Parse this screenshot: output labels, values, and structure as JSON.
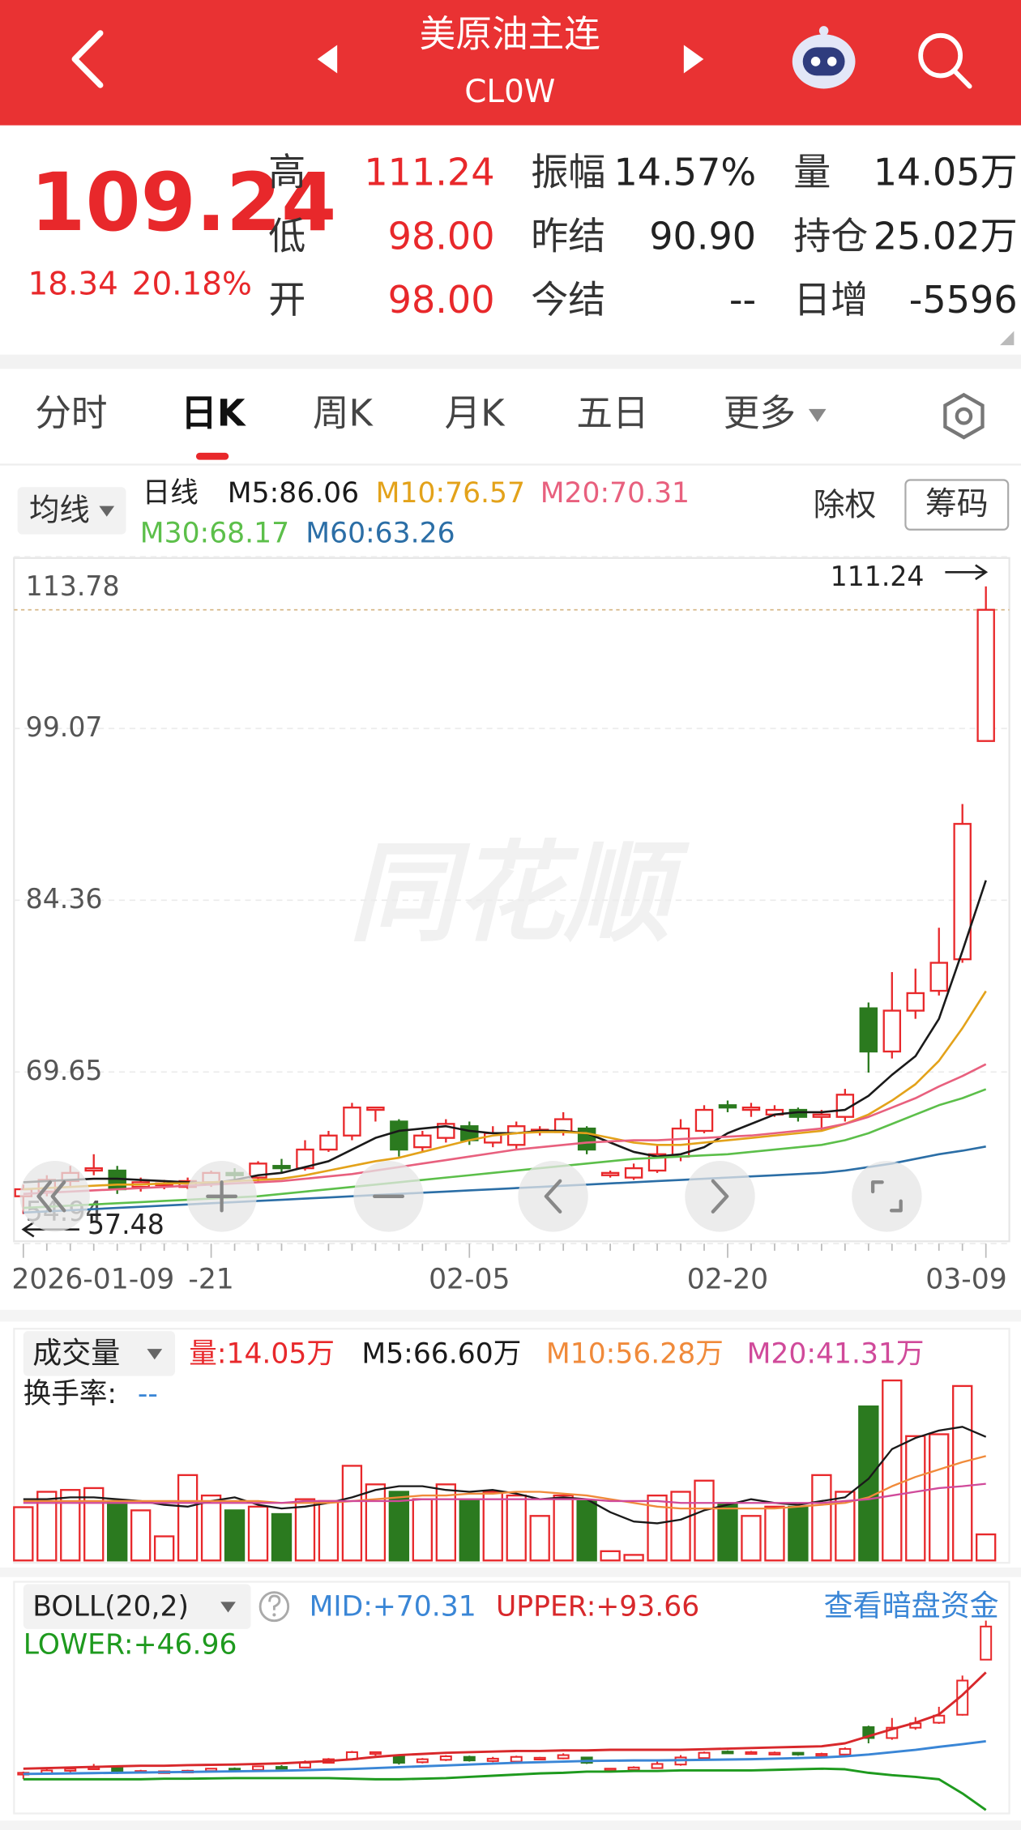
{
  "header": {
    "title": "美原油主连",
    "subtitle": "CL0W"
  },
  "quote": {
    "price": "109.24",
    "change": "18.34",
    "change_pct": "20.18%",
    "stats": [
      [
        {
          "label": "高",
          "value": "111.24"
        },
        {
          "label": "振幅",
          "value": "14.57%"
        },
        {
          "label": "量",
          "value": "14.05万"
        }
      ],
      [
        {
          "label": "低",
          "value": "98.00"
        },
        {
          "label": "昨结",
          "value": "90.90"
        },
        {
          "label": "持仓",
          "value": "25.02万"
        }
      ],
      [
        {
          "label": "开",
          "value": "98.00"
        },
        {
          "label": "今结",
          "value": "--"
        },
        {
          "label": "日增",
          "value": "-5596"
        }
      ]
    ]
  },
  "tabs": [
    "分时",
    "日K",
    "周K",
    "月K",
    "五日",
    "更多"
  ],
  "active_tab": 1,
  "toolbar": {
    "ma_button": "均线",
    "period": "日线",
    "fq": "除权",
    "chips": "筹码"
  },
  "watermark": "同花顺",
  "chart_data": [
    {
      "type": "candlestick",
      "categories": [
        "2026-01-09",
        null,
        null,
        null,
        null,
        null,
        null,
        null,
        "-21",
        null,
        null,
        null,
        null,
        null,
        null,
        null,
        null,
        null,
        null,
        "02-05",
        null,
        null,
        null,
        null,
        null,
        null,
        null,
        null,
        null,
        null,
        "02-20",
        null,
        null,
        null,
        null,
        null,
        null,
        null,
        null,
        null,
        null,
        "03-09"
      ],
      "open": [
        59.0,
        59.4,
        60.3,
        61.2,
        61.2,
        59.8,
        60.0,
        59.8,
        60.2,
        61.0,
        60.6,
        61.6,
        61.4,
        63.0,
        64.2,
        66.4,
        65.4,
        63.2,
        64.0,
        65.0,
        63.6,
        63.4,
        64.6,
        64.5,
        64.8,
        60.8,
        60.6,
        61.2,
        62.4,
        64.6,
        66.8,
        66.4,
        66.0,
        66.4,
        65.8,
        65.8,
        75.1,
        71.4,
        74.9,
        76.6,
        79.3,
        98
      ],
      "high": [
        60.0,
        60.8,
        61.6,
        62.6,
        61.6,
        60.6,
        60.4,
        60.6,
        61.2,
        61.4,
        62.0,
        62.2,
        63.8,
        64.6,
        67.0,
        66.6,
        65.6,
        64.6,
        65.6,
        65.4,
        65.0,
        65.4,
        65.0,
        66.2,
        65.0,
        61.2,
        61.8,
        63.4,
        65.6,
        66.8,
        67.2,
        67.0,
        66.8,
        66.6,
        66.4,
        68.2,
        75.6,
        78.2,
        78.5,
        82.0,
        92.6,
        111.24
      ],
      "low": [
        57.48,
        59.0,
        59.8,
        60.8,
        59.2,
        59.4,
        59.6,
        59.6,
        59.8,
        60.4,
        60.2,
        61.0,
        61.2,
        62.8,
        63.8,
        65.4,
        62.4,
        62.8,
        63.6,
        63.4,
        63.2,
        63.0,
        64.2,
        64.2,
        62.6,
        60.6,
        60.4,
        61.0,
        62.0,
        64.4,
        66.2,
        65.8,
        65.8,
        65.4,
        64.6,
        65.4,
        69.6,
        70.8,
        74.2,
        76.2,
        79.0,
        98
      ],
      "close": [
        59.6,
        60.4,
        61.0,
        61.4,
        59.6,
        60.2,
        60.1,
        60.3,
        61.0,
        60.8,
        61.8,
        61.4,
        63.0,
        64.2,
        66.6,
        66.6,
        63.0,
        64.2,
        65.2,
        63.8,
        64.4,
        65.0,
        64.7,
        65.6,
        63.0,
        61.0,
        61.4,
        62.6,
        64.8,
        66.4,
        66.6,
        66.6,
        66.4,
        65.8,
        66.0,
        67.7,
        71.4,
        74.9,
        76.4,
        79.0,
        90.9,
        109.24
      ],
      "up_color": "#e8282b",
      "down_color": "#2b7a1f",
      "series": [
        {
          "name": "M5:86.06",
          "color": "#1a1a1a",
          "values": [
            60.2,
            60.3,
            60.4,
            60.5,
            60.5,
            60.4,
            60.3,
            60.2,
            60.1,
            60.4,
            60.8,
            61.0,
            61.5,
            62.0,
            63.0,
            64.0,
            64.6,
            64.8,
            65.0,
            64.6,
            64.4,
            64.4,
            64.6,
            64.6,
            64.4,
            63.6,
            62.8,
            62.4,
            62.6,
            63.2,
            64.4,
            65.2,
            66.0,
            66.2,
            66.2,
            66.4,
            67.6,
            69.4,
            71.0,
            74.2,
            80.0,
            86.06
          ]
        },
        {
          "name": "M10:76.57",
          "color": "#e3a21a",
          "values": [
            59.6,
            59.7,
            59.8,
            59.9,
            60.0,
            60.0,
            60.1,
            60.1,
            60.2,
            60.3,
            60.4,
            60.5,
            60.8,
            61.2,
            61.6,
            62.0,
            62.3,
            62.8,
            63.3,
            63.8,
            64.2,
            64.4,
            64.5,
            64.5,
            64.4,
            64.0,
            63.6,
            63.4,
            63.4,
            63.6,
            63.8,
            64.0,
            64.2,
            64.4,
            64.6,
            65.2,
            66.0,
            67.2,
            68.6,
            70.6,
            73.4,
            76.57
          ]
        },
        {
          "name": "M20:70.31",
          "color": "#e8607e",
          "values": [
            59.2,
            59.3,
            59.4,
            59.5,
            59.6,
            59.7,
            59.8,
            59.9,
            60.0,
            60.1,
            60.2,
            60.3,
            60.5,
            60.7,
            60.9,
            61.2,
            61.5,
            61.8,
            62.1,
            62.4,
            62.7,
            63.0,
            63.2,
            63.4,
            63.6,
            63.7,
            63.8,
            63.8,
            63.9,
            64.0,
            64.1,
            64.2,
            64.4,
            64.6,
            64.8,
            65.2,
            65.8,
            66.6,
            67.4,
            68.4,
            69.3,
            70.31
          ]
        },
        {
          "name": "M30:68.17",
          "color": "#5cbf4a",
          "values": [
            58.0,
            58.1,
            58.2,
            58.3,
            58.4,
            58.5,
            58.6,
            58.7,
            58.8,
            58.9,
            59.0,
            59.2,
            59.4,
            59.6,
            59.8,
            60.0,
            60.2,
            60.4,
            60.6,
            60.8,
            61.0,
            61.2,
            61.4,
            61.6,
            61.8,
            62.0,
            62.2,
            62.3,
            62.4,
            62.5,
            62.6,
            62.8,
            63.0,
            63.2,
            63.4,
            63.8,
            64.4,
            65.2,
            66.0,
            66.8,
            67.4,
            68.17
          ]
        },
        {
          "name": "M60:63.26",
          "color": "#2b6ea6",
          "values": [
            57.6,
            57.7,
            57.8,
            57.9,
            58.0,
            58.1,
            58.2,
            58.3,
            58.4,
            58.5,
            58.6,
            58.7,
            58.8,
            58.9,
            59.0,
            59.1,
            59.2,
            59.3,
            59.4,
            59.5,
            59.6,
            59.7,
            59.8,
            59.9,
            60.0,
            60.1,
            60.2,
            60.3,
            60.4,
            60.5,
            60.6,
            60.7,
            60.8,
            60.9,
            61.0,
            61.2,
            61.5,
            61.8,
            62.2,
            62.6,
            62.9,
            63.26
          ]
        }
      ],
      "ylim": [
        54.94,
        113.78
      ],
      "yticks": [
        54.94,
        69.65,
        84.36,
        99.07,
        113.78
      ],
      "grid": true,
      "max_label": "111.24",
      "min_label": "57.48"
    },
    {
      "type": "bar",
      "title": "成交量",
      "volume_label": "量:14.05万",
      "turnover_label": "换手率:",
      "turnover_value": "--",
      "values": [
        28.7,
        37,
        38,
        39,
        32,
        27,
        13,
        46,
        35,
        27,
        29,
        25,
        33,
        32,
        51,
        41,
        37,
        33,
        41,
        33,
        37,
        35,
        24,
        35,
        32,
        5,
        3,
        35,
        37,
        43,
        31,
        24,
        29,
        29,
        46,
        37,
        83,
        97,
        67,
        68,
        94,
        14.05
      ],
      "up_color": "#e8282b",
      "down_color": "#2b7a1f",
      "ylim": [
        0,
        100
      ],
      "series": [
        {
          "name": "M5:66.60万",
          "color": "#1a1a1a",
          "values": [
            33,
            33,
            34,
            34,
            33,
            32,
            30,
            29,
            32,
            34,
            30,
            28,
            29,
            31,
            34,
            38,
            40,
            40,
            38,
            37,
            38,
            36,
            33,
            34,
            33,
            26,
            21,
            20,
            22,
            27,
            30,
            33,
            31,
            30,
            32,
            34,
            44,
            60,
            66,
            70,
            72,
            66.6
          ]
        },
        {
          "name": "M10:56.28万",
          "color": "#f08a3a",
          "values": [
            32,
            32,
            32,
            32,
            32,
            32,
            32,
            32,
            32,
            32,
            32,
            31,
            31,
            31,
            32,
            33,
            34,
            35,
            35,
            36,
            36,
            37,
            37,
            36,
            35,
            33,
            31,
            29,
            28,
            28,
            28,
            28,
            28,
            29,
            30,
            31,
            34,
            40,
            45,
            49,
            53,
            56.28
          ]
        },
        {
          "name": "M20:41.31万",
          "color": "#d04a9a",
          "values": [
            31,
            31,
            31,
            31,
            31,
            31,
            31,
            31,
            31,
            31,
            31,
            31,
            32,
            32,
            32,
            32,
            32,
            33,
            33,
            33,
            33,
            33,
            33,
            33,
            33,
            32,
            32,
            32,
            31,
            31,
            31,
            31,
            31,
            31,
            31,
            32,
            33,
            35,
            37,
            39,
            40,
            41.31
          ]
        }
      ]
    },
    {
      "type": "boll",
      "title": "BOLL(20,2)",
      "link": "查看暗盘资金",
      "ylim": [
        45,
        112
      ],
      "series": [
        {
          "name": "MID:+70.31",
          "color": "#3a86d6",
          "values": [
            59.2,
            59.3,
            59.4,
            59.5,
            59.6,
            59.7,
            59.8,
            59.9,
            60.0,
            60.1,
            60.2,
            60.3,
            60.5,
            60.7,
            60.9,
            61.2,
            61.5,
            61.8,
            62.1,
            62.4,
            62.7,
            63.0,
            63.2,
            63.4,
            63.6,
            63.7,
            63.8,
            63.8,
            63.9,
            64.0,
            64.1,
            64.2,
            64.4,
            64.6,
            64.8,
            65.2,
            65.8,
            66.6,
            67.4,
            68.4,
            69.3,
            70.31
          ]
        },
        {
          "name": "UPPER:+93.66",
          "color": "#d8282b",
          "values": [
            61.0,
            61.2,
            61.4,
            61.6,
            61.8,
            62.0,
            62.0,
            62.2,
            62.3,
            62.4,
            62.6,
            62.8,
            63.2,
            63.6,
            64.2,
            65.0,
            65.6,
            66.0,
            66.4,
            66.6,
            66.8,
            67.0,
            67.0,
            67.2,
            67.2,
            67.4,
            67.4,
            67.4,
            67.4,
            67.6,
            67.8,
            68.0,
            68.2,
            68.4,
            68.6,
            69.6,
            72.0,
            74.4,
            76.6,
            79.4,
            86.0,
            93.66
          ]
        },
        {
          "name": "LOWER:+46.96",
          "color": "#1e9a1e",
          "values": [
            57.4,
            57.4,
            57.4,
            57.4,
            57.4,
            57.4,
            57.6,
            57.6,
            57.7,
            57.8,
            57.8,
            57.8,
            57.8,
            57.8,
            57.6,
            57.4,
            57.4,
            57.6,
            57.8,
            58.2,
            58.6,
            59.0,
            59.4,
            59.6,
            60.0,
            60.0,
            60.2,
            60.2,
            60.4,
            60.4,
            60.4,
            60.4,
            60.6,
            60.8,
            61.0,
            60.8,
            59.6,
            58.8,
            58.2,
            57.4,
            52.6,
            46.96
          ]
        }
      ]
    }
  ]
}
